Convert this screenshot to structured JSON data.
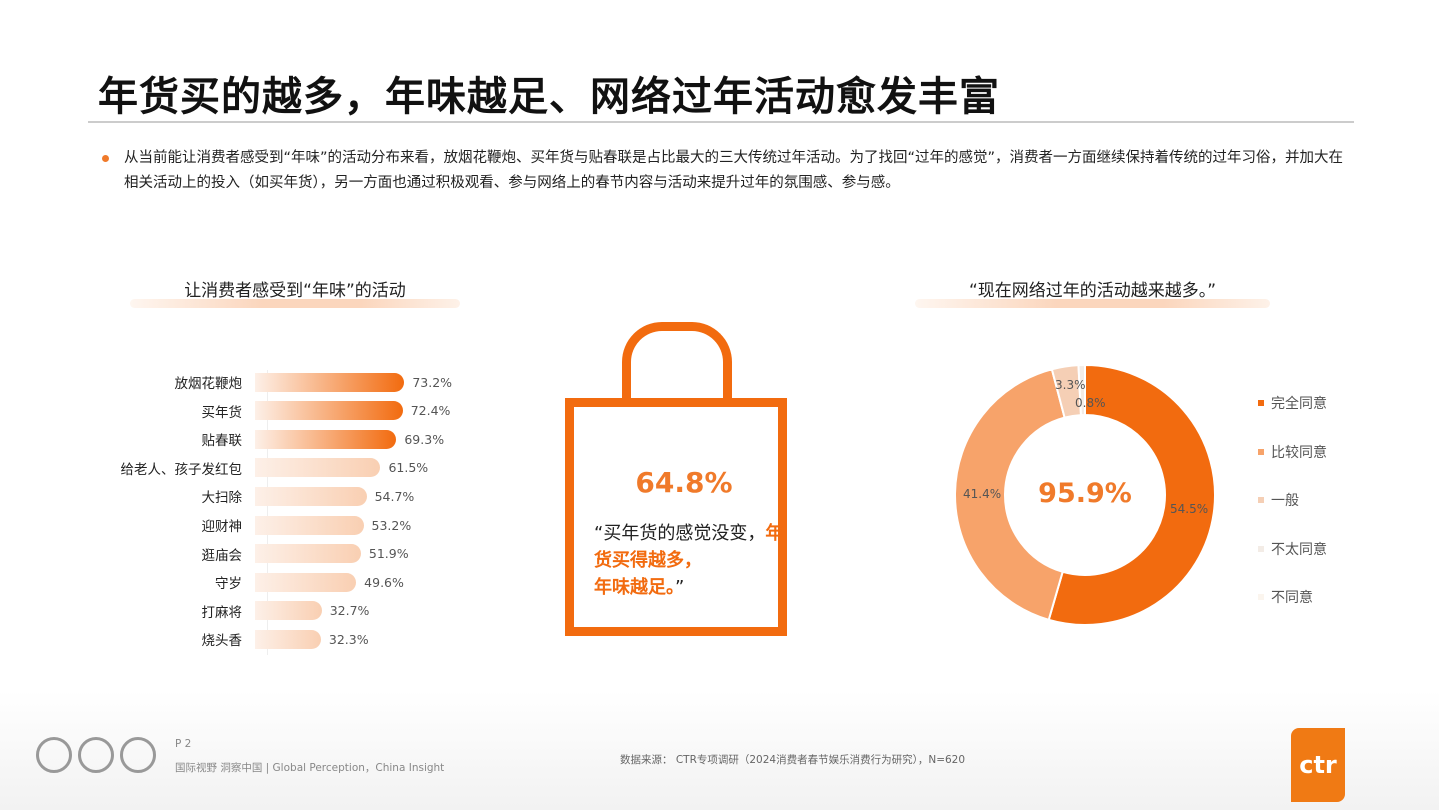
{
  "title": "年货买的越多，年味越足、网络过年活动愈发丰富",
  "bullet": "从当前能让消费者感受到“年味”的活动分布来看，放烟花鞭炮、买年货与贴春联是占比最大的三大传统过年活动。为了找回“过年的感觉”，消费者一方面继续保持着传统的过年习俗，并加大在相关活动上的投入（如买年货），另一方面也通过积极观看、参与网络上的春节内容与活动来提升过年的氛围感、参与感。",
  "left_title": "让消费者感受到“年味”的活动",
  "right_title": "“现在网络过年的活动越来越多。”",
  "bag": {
    "pct": "64.8%",
    "q1": "“买年货的感觉没变，",
    "q2": "年货买得越多，",
    "q3": "年味越足。",
    "q4": "”"
  },
  "chart_data": [
    {
      "type": "bar",
      "title": "让消费者感受到“年味”的活动",
      "categories": [
        "放烟花鞭炮",
        "买年货",
        "贴春联",
        "给老人、孩子发红包",
        "大扫除",
        "迎财神",
        "逛庙会",
        "守岁",
        "打麻将",
        "烧头香"
      ],
      "values": [
        73.2,
        72.4,
        69.3,
        61.5,
        54.7,
        53.2,
        51.9,
        49.6,
        32.7,
        32.3
      ],
      "labels": [
        "73.2%",
        "72.4%",
        "69.3%",
        "61.5%",
        "54.7%",
        "53.2%",
        "51.9%",
        "49.6%",
        "32.7%",
        "32.3%"
      ]
    },
    {
      "type": "pie",
      "title": "“现在网络过年的活动越来越多。”",
      "center_label": "95.9%",
      "categories": [
        "完全同意",
        "比较同意",
        "一般",
        "不太同意",
        "不同意"
      ],
      "values": [
        54.5,
        41.4,
        3.3,
        0.8,
        0
      ],
      "labels": [
        "54.5%",
        "41.4%",
        "3.3%",
        "0.8%",
        ""
      ],
      "colors": [
        "#f26b0f",
        "#f7a36a",
        "#f5cfb5",
        "#f3ece6",
        "#fbf5ee"
      ],
      "legend": "right"
    }
  ],
  "footer": {
    "page": "P 2",
    "slogan": "国际视野  洞察中国  |  Global Perception，China Insight",
    "source": "数据来源：  CTR专项调研（2024消费者春节娱乐消费行为研究），N=620",
    "logo": "ctr"
  }
}
